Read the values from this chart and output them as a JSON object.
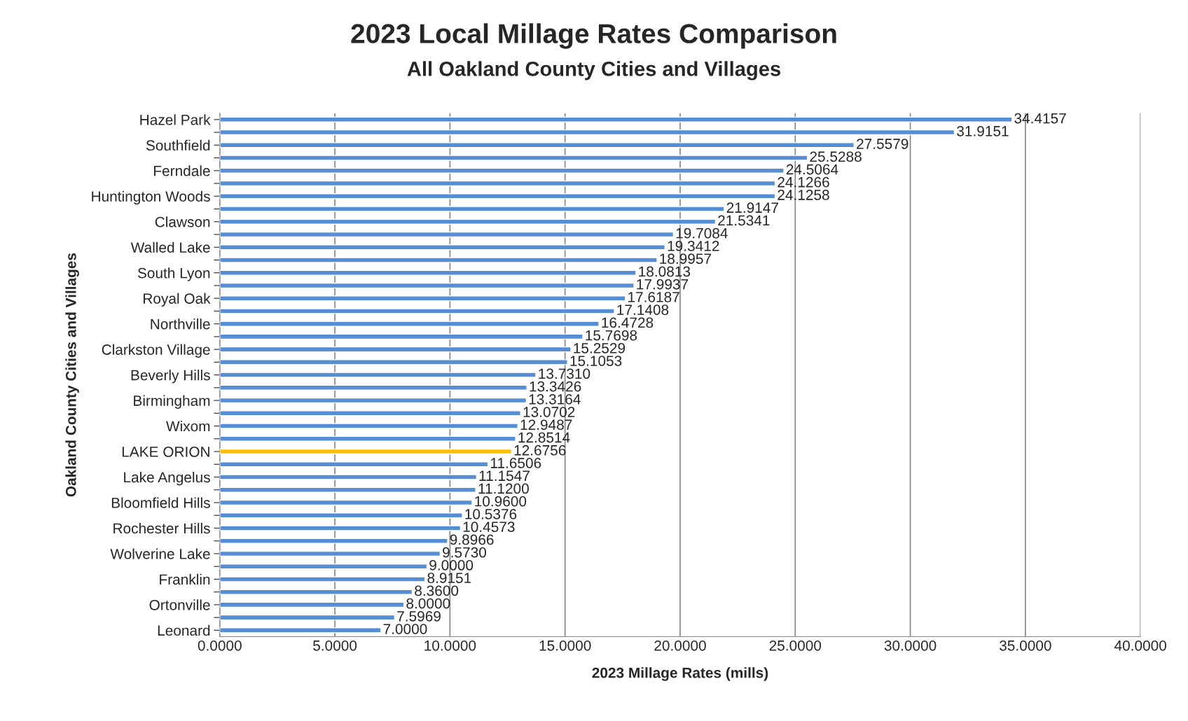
{
  "chart_data": {
    "type": "bar",
    "orientation": "horizontal",
    "title": "2023 Local Millage Rates Comparison",
    "subtitle": "All Oakland County Cities and Villages",
    "xlabel": "2023 Millage Rates (mills)",
    "ylabel": "Oakland County Cities and Villages",
    "categories": [
      "Hazel Park",
      null,
      "Southfield",
      null,
      "Ferndale",
      null,
      "Huntington Woods",
      null,
      "Clawson",
      null,
      "Walled Lake",
      null,
      "South Lyon",
      null,
      "Royal Oak",
      null,
      "Northville",
      null,
      "Clarkston Village",
      null,
      "Beverly Hills",
      null,
      "Birmingham",
      null,
      "Wixom",
      null,
      "LAKE ORION",
      null,
      "Lake Angelus",
      null,
      "Bloomfield Hills",
      null,
      "Rochester Hills",
      null,
      "Wolverine Lake",
      null,
      "Franklin",
      null,
      "Ortonville",
      null,
      "Leonard"
    ],
    "values": [
      34.4157,
      31.9151,
      27.5579,
      25.5288,
      24.5064,
      24.1266,
      24.1258,
      21.9147,
      21.5341,
      19.7084,
      19.3412,
      18.9957,
      18.0813,
      17.9937,
      17.6187,
      17.1408,
      16.4728,
      15.7698,
      15.2529,
      15.1053,
      13.731,
      13.3426,
      13.3164,
      13.0702,
      12.9487,
      12.8514,
      12.6756,
      11.6506,
      11.1547,
      11.12,
      10.96,
      10.5376,
      10.4573,
      9.8966,
      9.573,
      9.0,
      8.9151,
      8.36,
      8.0,
      7.5969,
      7.0
    ],
    "value_labels": [
      "34.4157",
      "31.9151",
      "27.5579",
      "25.5288",
      "24.5064",
      "24.1266",
      "24.1258",
      "21.9147",
      "21.5341",
      "19.7084",
      "19.3412",
      "18.9957",
      "18.0813",
      "17.9937",
      "17.6187",
      "17.1408",
      "16.4728",
      "15.7698",
      "15.2529",
      "15.1053",
      "13.7310",
      "13.3426",
      "13.3164",
      "13.0702",
      "12.9487",
      "12.8514",
      "12.6756",
      "11.6506",
      "11.1547",
      "11.1200",
      "10.9600",
      "10.5376",
      "10.4573",
      "9.8966",
      "9.5730",
      "9.0000",
      "8.9151",
      "8.3600",
      "8.0000",
      "7.5969",
      "7.0000"
    ],
    "colors": [
      "#558ed5",
      "#558ed5",
      "#558ed5",
      "#558ed5",
      "#558ed5",
      "#558ed5",
      "#558ed5",
      "#558ed5",
      "#558ed5",
      "#558ed5",
      "#558ed5",
      "#558ed5",
      "#558ed5",
      "#558ed5",
      "#558ed5",
      "#558ed5",
      "#558ed5",
      "#558ed5",
      "#558ed5",
      "#558ed5",
      "#558ed5",
      "#558ed5",
      "#558ed5",
      "#558ed5",
      "#558ed5",
      "#558ed5",
      "#ffc000",
      "#558ed5",
      "#558ed5",
      "#558ed5",
      "#558ed5",
      "#558ed5",
      "#558ed5",
      "#558ed5",
      "#558ed5",
      "#558ed5",
      "#558ed5",
      "#558ed5",
      "#558ed5",
      "#558ed5",
      "#558ed5"
    ],
    "xlim": [
      0,
      40
    ],
    "xticks": [
      {
        "value": 0,
        "label": "0.0000"
      },
      {
        "value": 5,
        "label": "5.0000"
      },
      {
        "value": 10,
        "label": "10.0000"
      },
      {
        "value": 15,
        "label": "15.0000"
      },
      {
        "value": 20,
        "label": "20.0000"
      },
      {
        "value": 25,
        "label": "25.0000"
      },
      {
        "value": 30,
        "label": "30.0000"
      },
      {
        "value": 35,
        "label": "35.0000"
      },
      {
        "value": 40,
        "label": "40.0000"
      }
    ],
    "grid": "x",
    "legend": false
  }
}
